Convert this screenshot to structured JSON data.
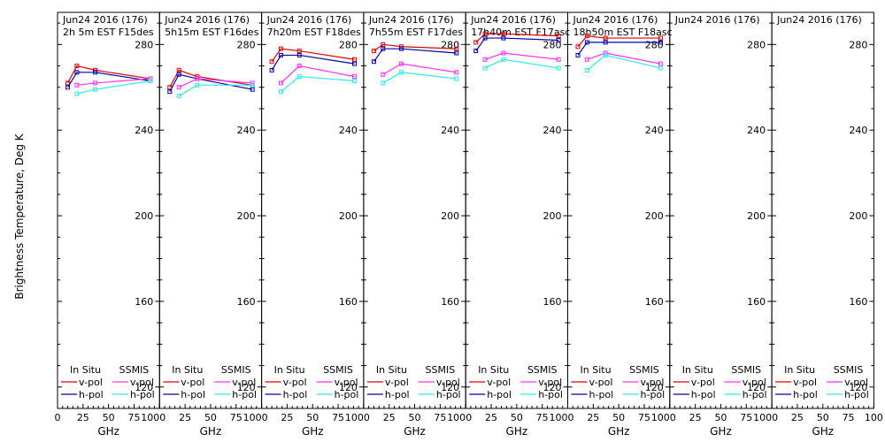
{
  "figure": {
    "ylabel": "Brightness Temperature, Deg K",
    "xlabel": "GHz",
    "xticks": [
      "0",
      "25",
      "50",
      "75",
      "100"
    ],
    "xtick_values": [
      0,
      25,
      50,
      75,
      100
    ],
    "yticks": [
      "120",
      "160",
      "200",
      "240",
      "280"
    ],
    "ytick_values": [
      120,
      160,
      200,
      240,
      280
    ],
    "xlim": [
      0,
      100
    ],
    "ylim": [
      110,
      295
    ],
    "legend": {
      "in_situ": "In Situ",
      "ssmis": "SSMIS",
      "vpol": "v-pol",
      "hpol": "h-pol"
    },
    "colors": {
      "insitu_v": "#e00000",
      "insitu_h": "#0000b0",
      "ssmis_v": "#ff30ff",
      "ssmis_h": "#30e8f0"
    }
  },
  "chart_data": [
    {
      "type": "line",
      "title": "Jun24 2016 (176)",
      "subtitle": "2h 5m  EST F15des",
      "x": [
        10,
        19,
        37,
        91
      ],
      "series": [
        {
          "name": "In Situ v-pol",
          "values": [
            262,
            270,
            268,
            264
          ]
        },
        {
          "name": "In Situ h-pol",
          "values": [
            260,
            267,
            267,
            263
          ]
        },
        {
          "name": "SSMIS v-pol",
          "values": [
            null,
            261,
            262,
            264
          ]
        },
        {
          "name": "SSMIS h-pol",
          "values": [
            null,
            257,
            259,
            263
          ]
        }
      ]
    },
    {
      "type": "line",
      "title": "Jun24 2016 (176)",
      "subtitle": "5h15m  EST F16des",
      "x": [
        10,
        19,
        37,
        91
      ],
      "series": [
        {
          "name": "In Situ v-pol",
          "values": [
            260,
            268,
            265,
            261
          ]
        },
        {
          "name": "In Situ h-pol",
          "values": [
            258,
            266,
            264,
            259
          ]
        },
        {
          "name": "SSMIS v-pol",
          "values": [
            null,
            260,
            264,
            262
          ]
        },
        {
          "name": "SSMIS h-pol",
          "values": [
            null,
            256,
            261,
            261
          ]
        }
      ]
    },
    {
      "type": "line",
      "title": "Jun24 2016 (176)",
      "subtitle": "7h20m  EST F18des",
      "x": [
        10,
        19,
        37,
        91
      ],
      "series": [
        {
          "name": "In Situ v-pol",
          "values": [
            272,
            278,
            277,
            273
          ]
        },
        {
          "name": "In Situ h-pol",
          "values": [
            268,
            275,
            275,
            271
          ]
        },
        {
          "name": "SSMIS v-pol",
          "values": [
            null,
            262,
            270,
            265
          ]
        },
        {
          "name": "SSMIS h-pol",
          "values": [
            null,
            258,
            265,
            263
          ]
        }
      ]
    },
    {
      "type": "line",
      "title": "Jun24 2016 (176)",
      "subtitle": "7h55m  EST F17des",
      "x": [
        10,
        19,
        37,
        91
      ],
      "series": [
        {
          "name": "In Situ v-pol",
          "values": [
            277,
            280,
            279,
            278
          ]
        },
        {
          "name": "In Situ h-pol",
          "values": [
            272,
            278,
            278,
            276
          ]
        },
        {
          "name": "SSMIS v-pol",
          "values": [
            null,
            266,
            271,
            267
          ]
        },
        {
          "name": "SSMIS h-pol",
          "values": [
            null,
            262,
            267,
            264
          ]
        }
      ]
    },
    {
      "type": "line",
      "title": "Jun24 2016 (176)",
      "subtitle": "17h40m  EST F17asc",
      "x": [
        10,
        19,
        37,
        91
      ],
      "series": [
        {
          "name": "In Situ v-pol",
          "values": [
            281,
            285,
            285,
            284
          ]
        },
        {
          "name": "In Situ h-pol",
          "values": [
            277,
            283,
            283,
            282
          ]
        },
        {
          "name": "SSMIS v-pol",
          "values": [
            null,
            273,
            276,
            273
          ]
        },
        {
          "name": "SSMIS h-pol",
          "values": [
            null,
            269,
            273,
            269
          ]
        }
      ]
    },
    {
      "type": "line",
      "title": "Jun24 2016 (176)",
      "subtitle": "18h50m  EST F18asc",
      "x": [
        10,
        19,
        37,
        91
      ],
      "series": [
        {
          "name": "In Situ v-pol",
          "values": [
            279,
            284,
            283,
            283
          ]
        },
        {
          "name": "In Situ h-pol",
          "values": [
            275,
            281,
            281,
            281
          ]
        },
        {
          "name": "SSMIS v-pol",
          "values": [
            null,
            273,
            276,
            271
          ]
        },
        {
          "name": "SSMIS h-pol",
          "values": [
            null,
            268,
            275,
            269
          ]
        }
      ]
    },
    {
      "type": "line",
      "title": "Jun24 2016 (176)",
      "subtitle": "",
      "x": [
        10,
        19,
        37,
        91
      ],
      "series": []
    },
    {
      "type": "line",
      "title": "Jun24 2016 (176)",
      "subtitle": "",
      "x": [
        10,
        19,
        37,
        91
      ],
      "series": []
    }
  ]
}
